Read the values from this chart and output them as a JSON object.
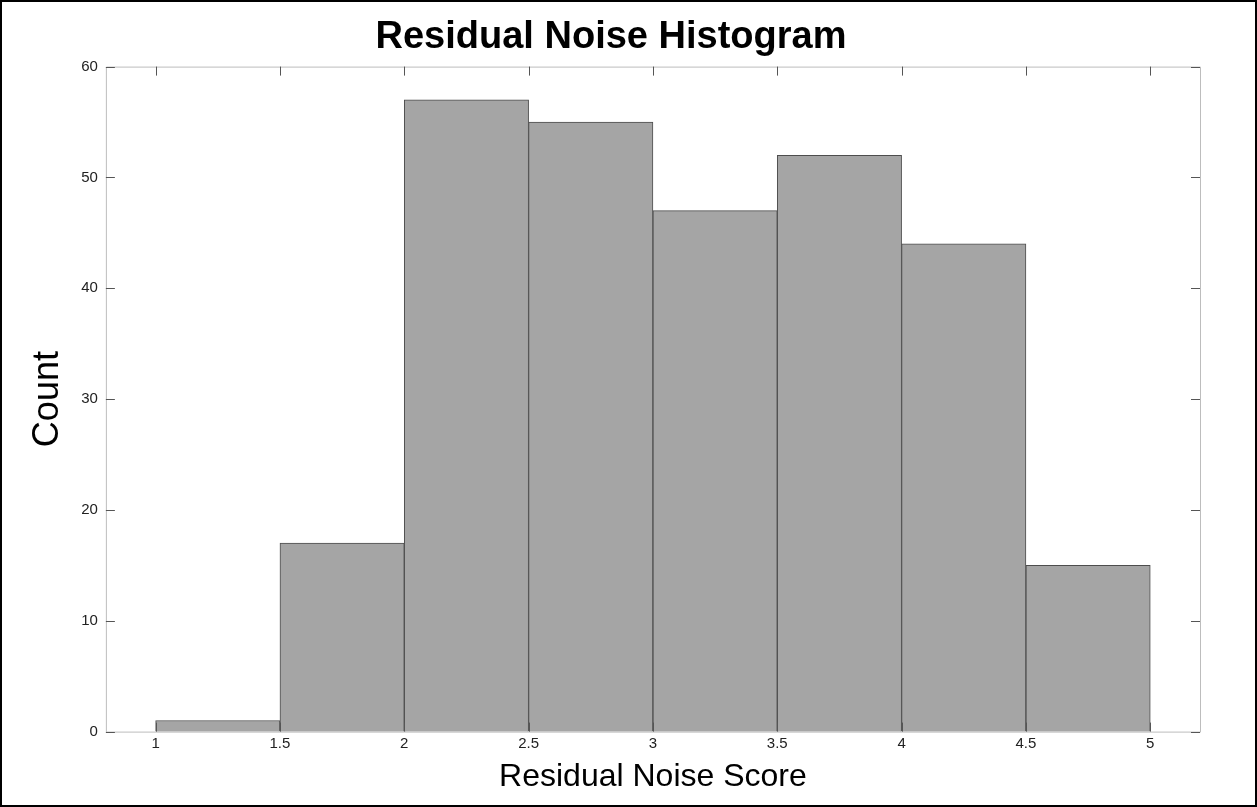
{
  "chart_data": {
    "type": "histogram",
    "title": "Residual Noise Histogram",
    "xlabel": "Residual Noise Score",
    "ylabel": "Count",
    "bins": [
      1,
      1.5,
      2,
      2.5,
      3,
      3.5,
      4,
      4.5,
      5
    ],
    "values": [
      1,
      17,
      57,
      55,
      47,
      52,
      44,
      15
    ],
    "color": "#a5a5a5",
    "xlim": [
      0.8,
      5.2
    ],
    "xticks": [
      1,
      1.5,
      2,
      2.5,
      3,
      3.5,
      4,
      4.5,
      5
    ],
    "ylim": [
      0,
      60
    ],
    "yticks": [
      0,
      10,
      20,
      30,
      40,
      50,
      60
    ],
    "grid": false,
    "legend": false
  }
}
